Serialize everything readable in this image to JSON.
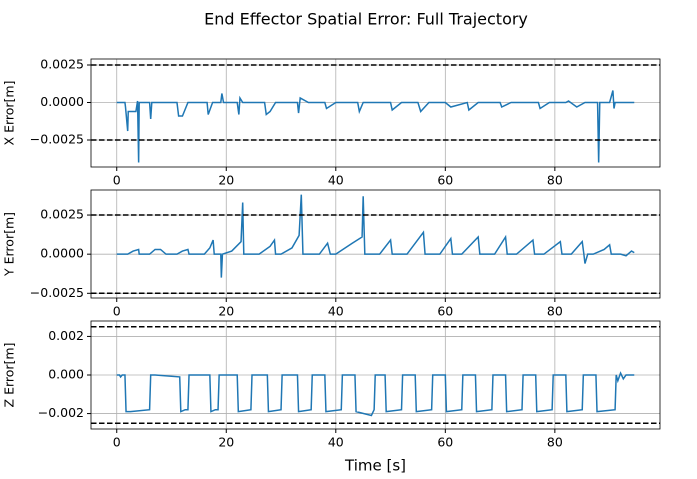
{
  "title": "End Effector Spatial Error: Full Trajectory",
  "chart_data": [
    {
      "type": "line",
      "ylabel": "X Error[m]",
      "xlim": [
        -4.7,
        99.2
      ],
      "ylim": [
        -0.0043,
        0.0029
      ],
      "xticks": [
        0,
        20,
        40,
        60,
        80
      ],
      "yticks": [
        0.0025,
        {
          "value": 0,
          "label": "0.0000"
        },
        {
          "value": -0.0025,
          "label": "−0.0025"
        }
      ],
      "grid": true,
      "reference_lines": [
        0.0025,
        -0.0025
      ],
      "x": [
        0,
        1.5,
        1.6,
        2,
        2.1,
        3.5,
        3.8,
        4,
        4.1,
        4.4,
        6,
        6.2,
        6.4,
        8.5,
        9,
        11,
        11.3,
        12,
        13,
        16.5,
        16.7,
        17,
        17.5,
        19,
        19.2,
        19.5,
        22,
        22.3,
        22.5,
        23,
        27,
        27.3,
        28,
        29,
        33,
        33.2,
        33.5,
        35,
        38,
        38.3,
        40,
        44,
        44.3,
        45,
        50,
        50.3,
        52,
        55,
        55.5,
        57,
        60,
        61,
        64,
        64.3,
        66,
        70,
        70.3,
        72,
        77,
        77.3,
        79,
        82,
        82.5,
        84,
        85.5,
        87.8,
        88,
        88.2,
        90,
        90.6,
        90.8,
        91,
        94.5
      ],
      "series": [
        {
          "color": "#1f77b4",
          "values": [
            0,
            0,
            -0.0003,
            -0.0019,
            -0.0006,
            -0.0006,
            0.0001,
            -0.004,
            0,
            0,
            0,
            -0.0011,
            0,
            0,
            0,
            0,
            -0.0009,
            -0.0009,
            0,
            0,
            -0.0008,
            -0.0005,
            0,
            0,
            0.0006,
            0,
            0,
            -0.0008,
            0.0003,
            0,
            0,
            -0.0008,
            -0.0006,
            0,
            0,
            -0.0007,
            0.0003,
            0,
            0,
            -0.0004,
            0,
            0,
            -0.0006,
            0,
            0,
            -0.0005,
            0,
            0,
            -0.0006,
            0,
            0,
            -0.0003,
            0,
            -0.0005,
            0,
            0,
            -0.0003,
            0,
            0,
            -0.0004,
            0,
            0,
            0.0001,
            -0.0003,
            0,
            0,
            -0.004,
            0,
            0,
            0.0008,
            -0.0004,
            0,
            0
          ]
        }
      ]
    },
    {
      "type": "line",
      "ylabel": "Y Error[m]",
      "xlim": [
        -4.7,
        99.2
      ],
      "ylim": [
        -0.0028,
        0.0041
      ],
      "xticks": [
        0,
        20,
        40,
        60,
        80
      ],
      "yticks": [
        0.0025,
        {
          "value": 0,
          "label": "0.0000"
        },
        {
          "value": -0.0025,
          "label": "−0.0025"
        }
      ],
      "grid": true,
      "reference_lines": [
        0.0025,
        -0.0025
      ],
      "x": [
        0,
        2,
        3,
        4,
        4.1,
        6,
        7,
        8,
        9,
        11,
        12,
        13,
        13.2,
        16,
        17,
        17.6,
        17.8,
        19,
        19.1,
        19.3,
        21,
        22.7,
        23,
        23.2,
        26,
        28,
        28.8,
        29,
        30,
        32,
        33.3,
        33.7,
        34,
        37,
        38.5,
        39,
        40,
        43,
        44.8,
        45,
        45.3,
        48,
        50,
        50.3,
        53,
        56,
        56.3,
        59,
        61,
        61.3,
        63,
        66,
        66.3,
        69,
        71,
        71.3,
        73,
        76,
        76.3,
        78,
        81,
        81.3,
        83,
        85,
        85.3,
        85.5,
        86,
        87,
        89,
        90,
        90.3,
        92,
        93,
        94,
        94.5
      ],
      "series": [
        {
          "color": "#1f77b4",
          "values": [
            0,
            0,
            0.0002,
            0.0003,
            0,
            0,
            0.0003,
            0.0003,
            0,
            0,
            0.0002,
            0.0003,
            0,
            0,
            0.0004,
            0.0009,
            0,
            0,
            -0.0015,
            0,
            0.0002,
            0.0008,
            0.0033,
            0,
            0,
            0.0005,
            0.0009,
            0,
            0,
            0.0004,
            0.0012,
            0.0038,
            0,
            0,
            0.0007,
            0,
            0,
            0.0007,
            0.0011,
            0.0037,
            0,
            0,
            0.0009,
            0,
            0,
            0.0014,
            0,
            0,
            0.001,
            0,
            0,
            0.0011,
            0,
            0,
            0.0011,
            0,
            0,
            0.0009,
            0,
            0,
            0.0008,
            0,
            0,
            0.0008,
            0,
            -0.0006,
            0,
            0,
            0.0003,
            0.0006,
            0,
            0,
            -0.0001,
            0.0002,
            0.0001
          ]
        }
      ]
    },
    {
      "type": "line",
      "ylabel": "Z Error[m]",
      "xlabel": "Time [s]",
      "xlim": [
        -4.7,
        99.2
      ],
      "ylim": [
        -0.0028,
        0.0028
      ],
      "xticks": [
        0,
        20,
        40,
        60,
        80
      ],
      "yticks": [
        0.002,
        {
          "value": 0,
          "label": "0.000"
        },
        {
          "value": -0.002,
          "label": "−0.002"
        }
      ],
      "grid": true,
      "reference_lines": [
        0.0025,
        -0.0025
      ],
      "x": [
        0,
        0.5,
        0.7,
        1,
        1.5,
        1.7,
        2.5,
        6,
        6.2,
        7,
        11.5,
        11.7,
        12.5,
        13,
        13.2,
        17,
        17.2,
        18,
        18.5,
        18.7,
        22,
        22.2,
        24.5,
        24.7,
        27.5,
        27.7,
        30,
        30.2,
        33,
        33.2,
        35.5,
        35.7,
        38,
        38.2,
        41,
        41.2,
        43.5,
        43.7,
        46.5,
        47,
        47.2,
        49,
        49.2,
        52,
        52.2,
        54.5,
        54.7,
        57.5,
        57.7,
        60,
        60.2,
        63,
        63.2,
        65.5,
        65.7,
        68.5,
        68.7,
        71,
        71.2,
        74,
        74.2,
        76.5,
        76.7,
        79.5,
        79.7,
        82,
        82.2,
        85,
        85.2,
        87.5,
        87.7,
        91,
        91.2,
        91.5,
        92,
        92.5,
        93,
        94.5
      ],
      "series": [
        {
          "color": "#1f77b4",
          "values": [
            0,
            0,
            -0.0001,
            0,
            0,
            -0.0019,
            -0.0019,
            -0.0018,
            0,
            0,
            -0.0001,
            -0.0019,
            -0.0018,
            -0.0018,
            0,
            0,
            -0.0019,
            -0.0018,
            -0.0018,
            0,
            0,
            -0.0019,
            -0.0018,
            0,
            0,
            -0.0019,
            -0.0018,
            0,
            0,
            -0.0019,
            -0.0018,
            0,
            0,
            -0.0019,
            -0.0018,
            0,
            0,
            -0.0019,
            -0.0021,
            -0.0018,
            0,
            0,
            -0.0019,
            -0.0018,
            0,
            0,
            -0.0019,
            -0.0018,
            0,
            0,
            -0.0019,
            -0.0018,
            0,
            0,
            -0.0019,
            -0.0018,
            0,
            0,
            -0.0019,
            -0.0018,
            0,
            0,
            -0.0019,
            -0.0018,
            0,
            0,
            -0.0019,
            -0.0018,
            0,
            0,
            -0.0019,
            -0.0018,
            0,
            -0.0003,
            0.0001,
            -0.0002,
            0,
            0
          ]
        }
      ]
    }
  ]
}
